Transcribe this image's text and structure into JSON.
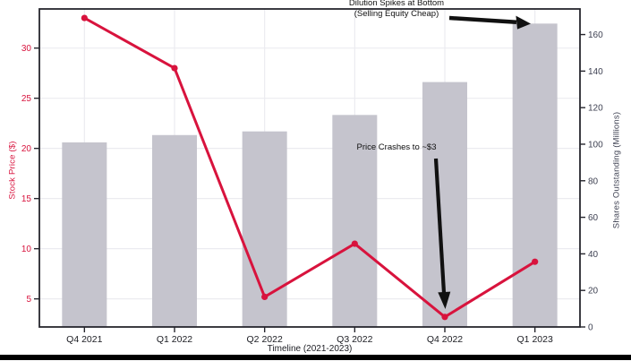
{
  "chart_data": {
    "type": "bar",
    "subtype": "dual-axis combo: bars (right axis) + line with markers (left axis)",
    "categories": [
      "Q4 2021",
      "Q1 2022",
      "Q2 2022",
      "Q3 2022",
      "Q4 2022",
      "Q1 2023"
    ],
    "series": [
      {
        "name": "Stock Price ($)",
        "chart_type": "line",
        "axis": "left",
        "values": [
          33,
          28,
          5.2,
          10.5,
          3.2,
          8.7
        ]
      },
      {
        "name": "Shares Outstanding (Millions)",
        "chart_type": "bar",
        "axis": "right",
        "values": [
          101,
          105,
          107,
          116,
          134,
          166
        ]
      }
    ],
    "xlabel": "Timeline (2021-2023)",
    "ylabel_left": "Stock Price ($)",
    "ylabel_right": "Shares Outstanding (Millions)",
    "left_axis_ticks": [
      5,
      10,
      15,
      20,
      25,
      30
    ],
    "right_axis_ticks": [
      0,
      20,
      40,
      60,
      80,
      100,
      120,
      140,
      160
    ],
    "left_ylim": [
      2.2,
      33.9
    ],
    "right_ylim": [
      0,
      174
    ],
    "grid": true,
    "legend": false
  },
  "annotations": {
    "dilution": {
      "line1": "Dilution Spikes at Bottom",
      "line2": "(Selling Equity Cheap)"
    },
    "price_crash": {
      "text": "Price Crashes to ~$3"
    }
  },
  "colors": {
    "line": "#d8133d",
    "marker": "#d8133d",
    "bar": "#c5c4cd",
    "left_axis_text": "#d8133d",
    "right_axis_text": "#3e4152",
    "x_axis_text": "#1b1c22",
    "annotation_text": "#111111",
    "arrow": "#111111",
    "gridline": "#ebebf0",
    "spine": "#26262e",
    "background": "#ffffff",
    "bottom_bar": "#000000"
  }
}
